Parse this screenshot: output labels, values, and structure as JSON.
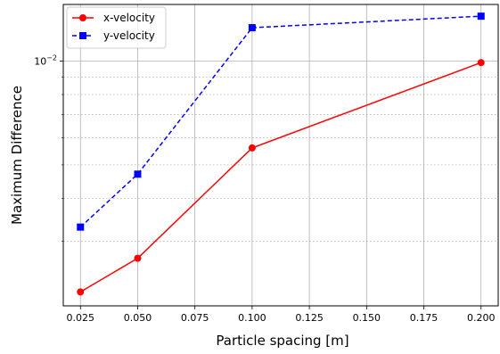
{
  "chart_data": {
    "type": "line",
    "xlabel": "Particle spacing [m]",
    "ylabel": "Maximum Difference",
    "x": [
      0.025,
      0.05,
      0.1,
      0.2
    ],
    "xlim": [
      0.0175,
      0.2075
    ],
    "ylim": [
      0.00195,
      0.0146
    ],
    "yscale": "log",
    "grid": true,
    "legend_position": "top-left",
    "x_ticks": [
      "0.025",
      "0.050",
      "0.075",
      "0.100",
      "0.125",
      "0.150",
      "0.175",
      "0.200"
    ],
    "x_tick_values": [
      0.025,
      0.05,
      0.075,
      0.1,
      0.125,
      0.15,
      0.175,
      0.2
    ],
    "y_major_ticks": [
      {
        "value": 0.01,
        "label_base": "10",
        "label_exp": "−2"
      }
    ],
    "y_minor_ticks": [
      0.003,
      0.004,
      0.005,
      0.006,
      0.007,
      0.008,
      0.009
    ],
    "series": [
      {
        "name": "x-velocity",
        "values": [
          0.00214,
          0.00268,
          0.0056,
          0.0099
        ],
        "color": "#ff0000",
        "linestyle": "solid",
        "marker": "circle"
      },
      {
        "name": "y-velocity",
        "values": [
          0.0033,
          0.0047,
          0.0125,
          0.0135
        ],
        "color": "#0000ff",
        "linestyle": "dashed",
        "marker": "square"
      }
    ]
  }
}
